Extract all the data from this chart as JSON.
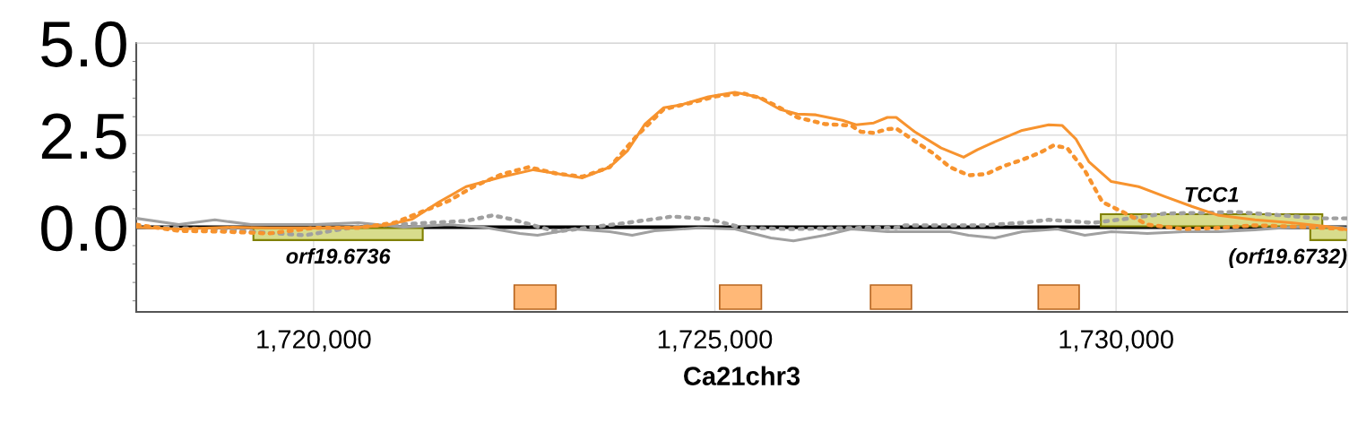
{
  "chart_data": {
    "type": "line",
    "xlabel": "Ca21chr3",
    "xlim": [
      1717790,
      1732880
    ],
    "xticks": [
      {
        "value": 1720000,
        "label": "1,720,000"
      },
      {
        "value": 1725000,
        "label": "1,725,000"
      },
      {
        "value": 1730000,
        "label": "1,730,000"
      }
    ],
    "ylim": [
      -2.3,
      5.0
    ],
    "yticks": [
      {
        "value": 0,
        "label": "0.0"
      },
      {
        "value": 2.5,
        "label": "2.5"
      },
      {
        "value": 5,
        "label": "5.0"
      }
    ],
    "grid": true,
    "marker": "none",
    "series": [
      {
        "color": "#a0a0a0",
        "line_style": "solid",
        "x": [
          1717790,
          1718320,
          1718770,
          1719220,
          1720000,
          1720560,
          1721120,
          1721680,
          1722120,
          1722570,
          1722790,
          1723240,
          1723690,
          1723970,
          1724250,
          1724800,
          1725250,
          1725700,
          1725980,
          1726370,
          1726700,
          1727150,
          1727600,
          1727930,
          1728160,
          1728490,
          1728830,
          1729270,
          1729610,
          1729940,
          1730390,
          1730840,
          1731280,
          1731730,
          1732180,
          1732630,
          1732880
        ],
        "values": [
          0.24,
          0.07,
          0.2,
          0.07,
          0.07,
          0.12,
          0,
          0.07,
          0,
          -0.17,
          -0.22,
          -0.05,
          -0.12,
          -0.22,
          -0.1,
          -0.02,
          -0.05,
          -0.29,
          -0.37,
          -0.22,
          -0.05,
          -0.12,
          -0.12,
          -0.12,
          -0.22,
          -0.29,
          -0.12,
          -0.05,
          -0.22,
          -0.12,
          -0.17,
          -0.12,
          -0.12,
          -0.07,
          0,
          0.02,
          -0.02
        ]
      },
      {
        "color": "#a0a0a0",
        "line_style": "dotted",
        "x": [
          1717790,
          1718880,
          1719890,
          1720560,
          1721450,
          1721900,
          1722230,
          1722460,
          1723020,
          1723910,
          1724470,
          1724920,
          1725360,
          1725920,
          1726820,
          1727260,
          1727370,
          1727820,
          1728380,
          1728830,
          1729160,
          1729720,
          1730170,
          1730610,
          1731060,
          1731510,
          1732070,
          1732510,
          1732880
        ],
        "values": [
          0.02,
          -0.07,
          -0.22,
          0.02,
          0.12,
          0.17,
          0.32,
          0.22,
          -0.12,
          0.12,
          0.29,
          0.22,
          -0.02,
          -0.05,
          -0.02,
          -0.02,
          0.05,
          0.05,
          0.05,
          0.12,
          0.2,
          0.12,
          0.24,
          0.37,
          0.39,
          0.41,
          0.32,
          0.24,
          0.24
        ]
      },
      {
        "color": "#f7932e",
        "line_style": "dotted",
        "x": [
          1717790,
          1718320,
          1718880,
          1719440,
          1720000,
          1720560,
          1721010,
          1721340,
          1721680,
          1722010,
          1722350,
          1722680,
          1723020,
          1723350,
          1723690,
          1724020,
          1724360,
          1724690,
          1725030,
          1725360,
          1725590,
          1725810,
          1726030,
          1726370,
          1726700,
          1726820,
          1726980,
          1727150,
          1727260,
          1727490,
          1727710,
          1727930,
          1728160,
          1728380,
          1728600,
          1728830,
          1729050,
          1729220,
          1729390,
          1729610,
          1729830,
          1730060,
          1730390,
          1730840,
          1731280,
          1731730,
          1732180,
          1732850
        ],
        "values": [
          0.07,
          -0.1,
          -0.12,
          -0.17,
          -0.02,
          -0.02,
          0.12,
          0.41,
          0.71,
          1.12,
          1.44,
          1.63,
          1.46,
          1.37,
          1.63,
          2.46,
          3.2,
          3.37,
          3.56,
          3.63,
          3.49,
          3.24,
          2.98,
          2.8,
          2.76,
          2.59,
          2.56,
          2.66,
          2.68,
          2.34,
          2.02,
          1.63,
          1.41,
          1.44,
          1.66,
          1.83,
          2.02,
          2.22,
          2.15,
          1.54,
          0.68,
          0.44,
          0.07,
          -0.05,
          -0.02,
          0.05,
          0.02,
          -0.05
        ]
      },
      {
        "color": "#f7932e",
        "line_style": "solid",
        "x": [
          1717790,
          1718320,
          1718990,
          1719440,
          1720000,
          1720560,
          1720890,
          1721230,
          1721560,
          1721900,
          1722350,
          1722740,
          1723020,
          1723350,
          1723690,
          1723910,
          1724130,
          1724360,
          1724580,
          1724920,
          1725250,
          1725530,
          1725810,
          1726030,
          1726260,
          1726590,
          1726760,
          1726980,
          1727150,
          1727260,
          1727490,
          1727820,
          1728100,
          1728270,
          1728490,
          1728830,
          1729160,
          1729330,
          1729500,
          1729660,
          1729940,
          1730280,
          1730610,
          1730950,
          1731280,
          1731730,
          1732180,
          1732630,
          1732880
        ],
        "values": [
          0,
          -0.05,
          0,
          -0.02,
          -0.02,
          0,
          0.05,
          0.22,
          0.68,
          1.1,
          1.37,
          1.56,
          1.46,
          1.34,
          1.63,
          2.07,
          2.8,
          3.24,
          3.32,
          3.54,
          3.66,
          3.54,
          3.2,
          3.07,
          3.05,
          2.9,
          2.78,
          2.83,
          2.98,
          2.98,
          2.59,
          2.15,
          1.9,
          2.1,
          2.32,
          2.63,
          2.78,
          2.76,
          2.39,
          1.78,
          1.24,
          1.1,
          0.83,
          0.56,
          0.32,
          0.2,
          0.12,
          0.02,
          -0.07
        ]
      }
    ],
    "ref_lines": [
      {
        "axis": "y",
        "value": 0,
        "color": "#000000",
        "line_style": "solid"
      }
    ],
    "bands": [
      {
        "axis": "x",
        "from": 1719250,
        "to": 1721360,
        "label": "orf19.6736",
        "color": "#d8dc8c"
      },
      {
        "axis": "x",
        "from": 1729810,
        "to": 1732570,
        "label": "TCC1",
        "color": "#d8dc8c"
      },
      {
        "axis": "x",
        "from": 1732420,
        "to": 1732880,
        "label": "(orf19.6732)",
        "color": "#d8dc8c"
      },
      {
        "axis": "x",
        "from": 1722500,
        "to": 1723020,
        "color": "#ffb877"
      },
      {
        "axis": "x",
        "from": 1725060,
        "to": 1725580,
        "color": "#ffb877"
      },
      {
        "axis": "x",
        "from": 1726940,
        "to": 1727450,
        "color": "#ffb877"
      },
      {
        "axis": "x",
        "from": 1729030,
        "to": 1729540,
        "color": "#ffb877"
      }
    ]
  }
}
